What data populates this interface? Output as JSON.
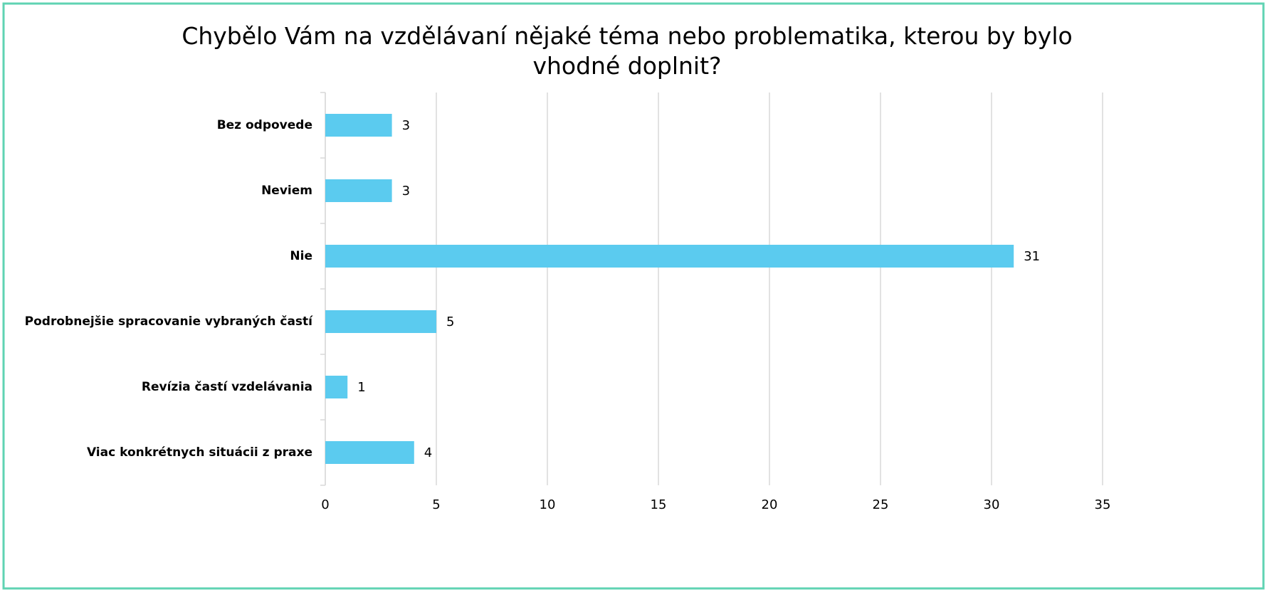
{
  "chart_data": {
    "type": "bar",
    "orientation": "horizontal",
    "title": "Chybělo Vám na vzdělávaní nějaké téma nebo problematika, kterou by bylo vhodné doplnit?",
    "categories": [
      "Bez odpovede",
      "Neviem",
      "Nie",
      "Podrobnejšie spracovanie vybraných častí",
      "Revízia častí vzdelávania",
      "Viac konkrétnych situácii z praxe"
    ],
    "values": [
      3,
      3,
      31,
      5,
      1,
      4
    ],
    "color": "#5bcbef",
    "xlim": [
      0,
      35
    ],
    "xticks": [
      0,
      5,
      10,
      15,
      20,
      25,
      30,
      35
    ],
    "grid": true
  }
}
